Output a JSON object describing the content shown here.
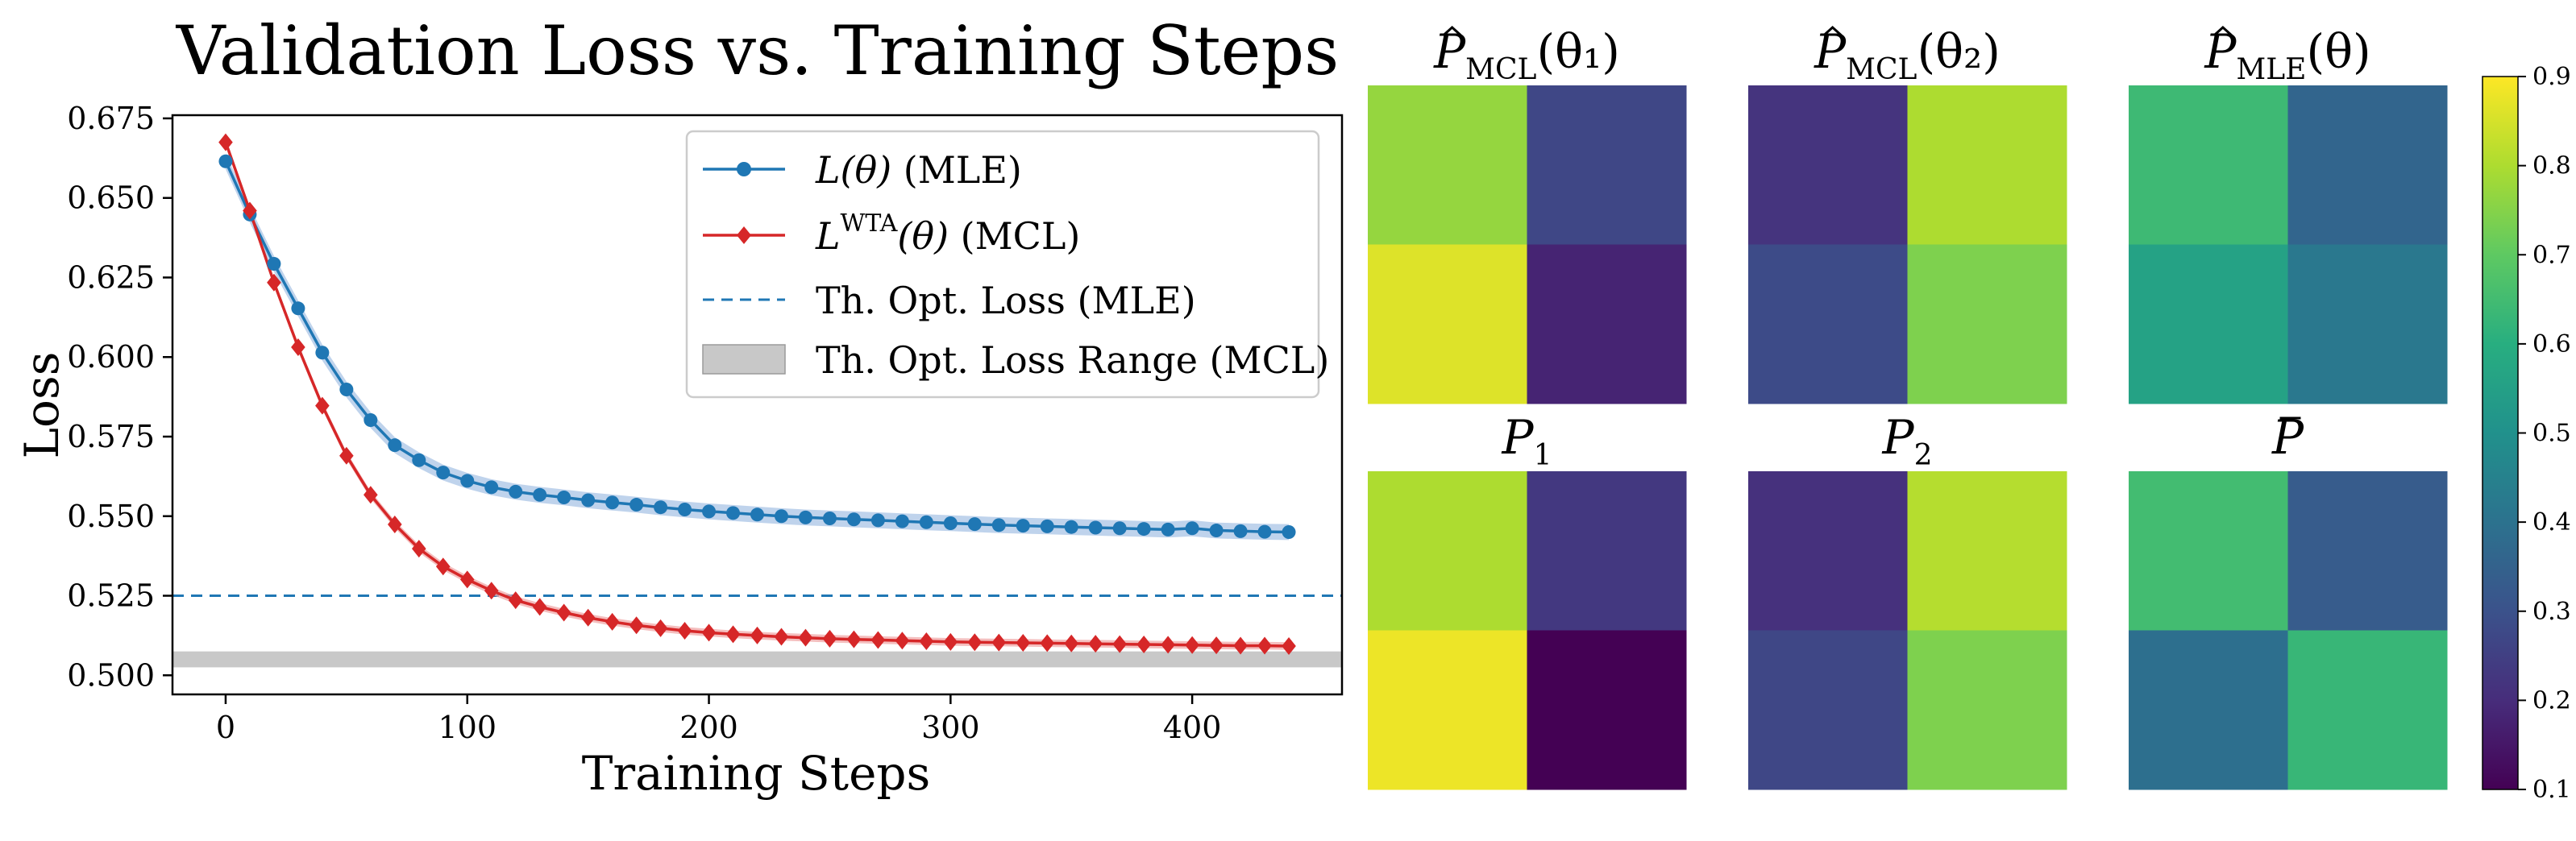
{
  "chart_data": [
    {
      "type": "line",
      "title": "Validation Loss vs. Training Steps",
      "xlabel": "Training Steps",
      "ylabel": "Loss",
      "xlim": [
        -22,
        462
      ],
      "ylim": [
        0.494,
        0.676
      ],
      "xticks": [
        0,
        100,
        200,
        300,
        400
      ],
      "xtick_labels": [
        "0",
        "100",
        "200",
        "300",
        "400"
      ],
      "yticks": [
        0.5,
        0.525,
        0.55,
        0.575,
        0.6,
        0.625,
        0.65,
        0.675
      ],
      "ytick_labels": [
        "0.500",
        "0.525",
        "0.550",
        "0.575",
        "0.600",
        "0.625",
        "0.650",
        "0.675"
      ],
      "legend_position": "top-right",
      "x": [
        0,
        10,
        20,
        30,
        40,
        50,
        60,
        70,
        80,
        90,
        100,
        110,
        120,
        130,
        140,
        150,
        160,
        170,
        180,
        190,
        200,
        210,
        220,
        230,
        240,
        250,
        260,
        270,
        280,
        290,
        300,
        310,
        320,
        330,
        340,
        350,
        360,
        370,
        380,
        390,
        400,
        410,
        420,
        430,
        440
      ],
      "series": [
        {
          "name": "MLE",
          "legend_math": "L(θ)",
          "legend_suffix": " (MLE)",
          "color": "#1f77b4",
          "band_color": "#a9c4e6",
          "marker": "circle",
          "values": [
            0.6615,
            0.6448,
            0.6293,
            0.6153,
            0.6014,
            0.5898,
            0.5802,
            0.5723,
            0.5676,
            0.5637,
            0.5611,
            0.5591,
            0.5577,
            0.5567,
            0.5559,
            0.555,
            0.5543,
            0.5536,
            0.5528,
            0.5521,
            0.5515,
            0.551,
            0.5505,
            0.55,
            0.5496,
            0.5493,
            0.549,
            0.5487,
            0.5484,
            0.5481,
            0.5478,
            0.5475,
            0.5472,
            0.547,
            0.5468,
            0.5466,
            0.5464,
            0.5462,
            0.546,
            0.5458,
            0.5462,
            0.5455,
            0.5453,
            0.5451,
            0.545
          ],
          "band": 0.0025
        },
        {
          "name": "MCL",
          "legend_math": "L",
          "legend_superscript": "WTA",
          "legend_math_tail": "(θ)",
          "legend_suffix": " (MCL)",
          "color": "#d62728",
          "band_color": "#f0a8a8",
          "marker": "diamond",
          "values": [
            0.6675,
            0.646,
            0.6234,
            0.6031,
            0.5847,
            0.569,
            0.5567,
            0.5474,
            0.5398,
            0.5342,
            0.5301,
            0.5266,
            0.5236,
            0.5215,
            0.5197,
            0.5181,
            0.5168,
            0.5157,
            0.5148,
            0.514,
            0.5134,
            0.5129,
            0.5125,
            0.5121,
            0.5118,
            0.5115,
            0.5113,
            0.5111,
            0.5109,
            0.5107,
            0.5105,
            0.5104,
            0.5103,
            0.5102,
            0.5101,
            0.51,
            0.5099,
            0.5098,
            0.5097,
            0.5096,
            0.5095,
            0.5094,
            0.5093,
            0.5093,
            0.5092
          ],
          "band": 0.0012
        }
      ],
      "reference_line": {
        "name": "Th. Opt. Loss (MLE)",
        "value": 0.525,
        "color": "#1f77b4",
        "style": "dashed"
      },
      "reference_band": {
        "name": "Th. Opt. Loss Range (MCL)",
        "low": 0.5025,
        "high": 0.5075,
        "color": "#c8c8c8"
      }
    },
    {
      "type": "heatmap",
      "colormap": "viridis",
      "vmin": 0.1,
      "vmax": 0.9,
      "colorbar_ticks": [
        0.1,
        0.2,
        0.3,
        0.4,
        0.5,
        0.6,
        0.7,
        0.8,
        0.9
      ],
      "colorbar_tick_labels": [
        "0.1",
        "0.2",
        "0.3",
        "0.4",
        "0.5",
        "0.6",
        "0.7",
        "0.8",
        "0.9"
      ],
      "panels": [
        {
          "name": "P_MCL_theta1",
          "symbol": "P",
          "hat": true,
          "bar": false,
          "subscript": "MCL",
          "argument": "(θ₁)",
          "values": [
            [
              0.77,
              0.27
            ],
            [
              0.86,
              0.18
            ]
          ]
        },
        {
          "name": "P_MCL_theta2",
          "symbol": "P",
          "hat": true,
          "bar": false,
          "subscript": "MCL",
          "argument": "(θ₂)",
          "values": [
            [
              0.22,
              0.8
            ],
            [
              0.28,
              0.74
            ]
          ]
        },
        {
          "name": "P_MLE_theta",
          "symbol": "P",
          "hat": true,
          "bar": false,
          "subscript": "MLE",
          "argument": "(θ)",
          "values": [
            [
              0.64,
              0.36
            ],
            [
              0.56,
              0.42
            ]
          ]
        },
        {
          "name": "P1",
          "symbol": "P",
          "hat": false,
          "bar": false,
          "subscript": "1",
          "argument": "",
          "values": [
            [
              0.8,
              0.23
            ],
            [
              0.88,
              0.1
            ]
          ]
        },
        {
          "name": "P2",
          "symbol": "P",
          "hat": false,
          "bar": false,
          "subscript": "2",
          "argument": "",
          "values": [
            [
              0.21,
              0.81
            ],
            [
              0.27,
              0.74
            ]
          ]
        },
        {
          "name": "P_bar",
          "symbol": "P",
          "hat": false,
          "bar": true,
          "subscript": "",
          "argument": "",
          "values": [
            [
              0.65,
              0.33
            ],
            [
              0.39,
              0.63
            ]
          ]
        }
      ]
    }
  ]
}
